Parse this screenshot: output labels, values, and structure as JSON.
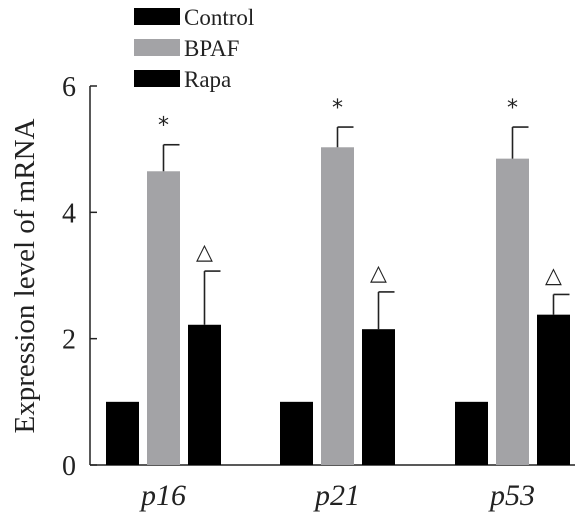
{
  "chart_data": {
    "type": "bar",
    "categories": [
      "p16",
      "p21",
      "p53"
    ],
    "series": [
      {
        "name": "Control",
        "values": [
          1.0,
          1.0,
          1.0
        ],
        "errors": [
          0,
          0,
          0
        ],
        "color": "#000000",
        "annotations": [
          "",
          "",
          ""
        ]
      },
      {
        "name": "BPAF",
        "values": [
          4.65,
          5.03,
          4.85
        ],
        "errors": [
          0.42,
          0.32,
          0.5
        ],
        "color": "#a3a3a6",
        "annotations": [
          "*",
          "*",
          "*"
        ]
      },
      {
        "name": "Rapa",
        "values": [
          2.22,
          2.15,
          2.38
        ],
        "errors": [
          0.85,
          0.59,
          0.32
        ],
        "color": "#000000",
        "annotations": [
          "△",
          "△",
          "△"
        ]
      }
    ],
    "ylabel": "Expression level of mRNA",
    "ylim": [
      0,
      6
    ],
    "yticks": [
      0,
      2,
      4,
      6
    ],
    "legend_position": "top-left",
    "grid": false
  }
}
